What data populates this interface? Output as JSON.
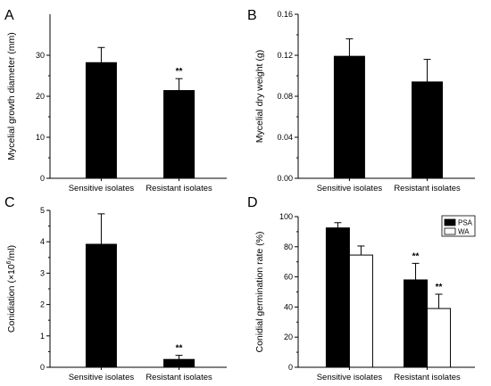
{
  "chart_data": [
    {
      "panel": "A",
      "type": "bar",
      "ylabel": "Mycelial growth diameter (mm)",
      "categories": [
        "Sensitive isolates",
        "Resistant isolates"
      ],
      "yticks": [
        "0",
        "10",
        "20",
        "30"
      ],
      "ylim": [
        0,
        40
      ],
      "tick_step": 10,
      "series": [
        {
          "values": [
            28.2,
            21.4
          ],
          "errors": [
            3.7,
            2.9
          ],
          "color": "#000000"
        }
      ],
      "annotations": [
        {
          "category": 1,
          "text": "**"
        }
      ]
    },
    {
      "panel": "B",
      "type": "bar",
      "ylabel": "Mycelial dry weight (g)",
      "categories": [
        "Sensitive isolates",
        "Resistant isolates"
      ],
      "yticks": [
        "0.00",
        "0.04",
        "0.08",
        "0.12",
        "0.16"
      ],
      "ylim": [
        0,
        0.16
      ],
      "tick_step": 0.04,
      "series": [
        {
          "values": [
            0.119,
            0.094
          ],
          "errors": [
            0.017,
            0.022
          ],
          "color": "#000000"
        }
      ],
      "annotations": []
    },
    {
      "panel": "C",
      "type": "bar",
      "ylabel_pre": "Conidiation (×10",
      "ylabel_sup": "6",
      "ylabel_post": "/ml)",
      "categories": [
        "Sensitive isolates",
        "Resistant isolates"
      ],
      "yticks": [
        "0",
        "1",
        "2",
        "3",
        "4",
        "5"
      ],
      "ylim": [
        0,
        5
      ],
      "tick_step": 1,
      "series": [
        {
          "values": [
            3.92,
            0.25
          ],
          "errors": [
            0.97,
            0.13
          ],
          "color": "#000000"
        }
      ],
      "annotations": [
        {
          "category": 1,
          "text": "**"
        }
      ]
    },
    {
      "panel": "D",
      "type": "bar",
      "ylabel": "Conidial germination rate (%)",
      "categories": [
        "Sensitive isolates",
        "Resistant isolates"
      ],
      "yticks": [
        "0",
        "20",
        "40",
        "60",
        "80",
        "100"
      ],
      "ylim": [
        0,
        100
      ],
      "tick_step": 20,
      "legend_position": "top-right",
      "series": [
        {
          "name": "PSA",
          "values": [
            92.5,
            58.0
          ],
          "errors": [
            3.5,
            11.0
          ],
          "color": "#000000"
        },
        {
          "name": "WA",
          "values": [
            74.5,
            39.0
          ],
          "errors": [
            6.0,
            9.5
          ],
          "color": "#ffffff"
        }
      ],
      "annotations": [
        {
          "category": 1,
          "series": 0,
          "text": "**"
        },
        {
          "category": 1,
          "series": 1,
          "text": "**"
        }
      ]
    }
  ]
}
